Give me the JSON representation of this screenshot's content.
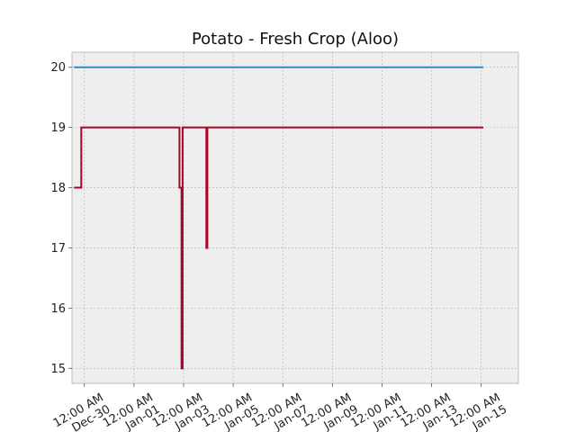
{
  "chart_data": {
    "type": "line",
    "title": "Potato - Fresh Crop (Aloo)",
    "xlabel": "",
    "ylabel": "",
    "x_range": [
      "2023-12-29T12:00",
      "2024-01-16T12:00"
    ],
    "ylim": [
      14.75,
      20.25
    ],
    "grid": true,
    "x_tick_labels": [
      {
        "x": "2023-12-30",
        "line1": "12:00 AM",
        "line2": "Dec-30"
      },
      {
        "x": "2024-01-01",
        "line1": "12:00 AM",
        "line2": "Jan-01"
      },
      {
        "x": "2024-01-03",
        "line1": "12:00 AM",
        "line2": "Jan-03"
      },
      {
        "x": "2024-01-05",
        "line1": "12:00 AM",
        "line2": "Jan-05"
      },
      {
        "x": "2024-01-07",
        "line1": "12:00 AM",
        "line2": "Jan-07"
      },
      {
        "x": "2024-01-09",
        "line1": "12:00 AM",
        "line2": "Jan-09"
      },
      {
        "x": "2024-01-11",
        "line1": "12:00 AM",
        "line2": "Jan-11"
      },
      {
        "x": "2024-01-13",
        "line1": "12:00 AM",
        "line2": "Jan-13"
      },
      {
        "x": "2024-01-15",
        "line1": "12:00 AM",
        "line2": "Jan-15"
      }
    ],
    "y_ticks": [
      15,
      16,
      17,
      18,
      19,
      20
    ],
    "series": [
      {
        "color": "#348ABD",
        "points": [
          {
            "x": "2023-12-29T14:00",
            "y": 20
          },
          {
            "x": "2024-01-15T02:00",
            "y": 20
          }
        ]
      },
      {
        "color": "#A60628",
        "points": [
          {
            "x": "2023-12-29T14:00",
            "y": 18
          },
          {
            "x": "2023-12-29T21:00",
            "y": 18
          },
          {
            "x": "2023-12-29T21:00",
            "y": 19
          },
          {
            "x": "2024-01-02T20:00",
            "y": 19
          },
          {
            "x": "2024-01-02T20:00",
            "y": 18
          },
          {
            "x": "2024-01-02T22:00",
            "y": 18
          },
          {
            "x": "2024-01-02T22:00",
            "y": 15
          },
          {
            "x": "2024-01-02T23:00",
            "y": 15
          },
          {
            "x": "2024-01-02T23:00",
            "y": 19
          },
          {
            "x": "2024-01-03T22:00",
            "y": 19
          },
          {
            "x": "2024-01-03T22:00",
            "y": 17
          },
          {
            "x": "2024-01-03T23:00",
            "y": 17
          },
          {
            "x": "2024-01-03T23:00",
            "y": 19
          },
          {
            "x": "2024-01-15T02:00",
            "y": 19
          }
        ]
      }
    ]
  }
}
